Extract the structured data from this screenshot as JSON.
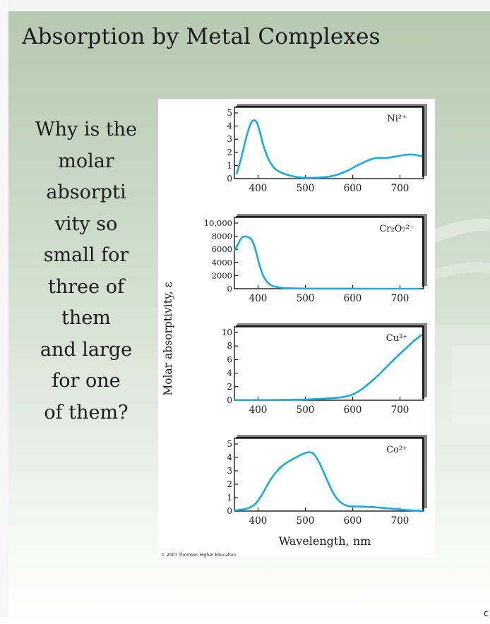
{
  "slide": {
    "title": "Absorption by Metal Complexes",
    "question_lines": [
      "Why is the",
      "molar",
      "absorpti",
      "vity so",
      "small for",
      "three of",
      "them",
      "and large",
      "for one",
      "of them?"
    ],
    "corner_glyph": "c"
  },
  "figure": {
    "ylabel": "Molar absorptivity, ε",
    "xlabel": "Wavelength, nm",
    "credit": "© 2007 Thomson Higher Education",
    "curve_color": "#1aaae8"
  },
  "chart_data": [
    {
      "type": "line",
      "series_label": "Ni²⁺",
      "x_ticks": [
        "400",
        "500",
        "600",
        "700"
      ],
      "y_ticks": [
        "0",
        "1",
        "2",
        "3",
        "4",
        "5"
      ],
      "xlim": [
        350,
        750
      ],
      "ylim": [
        0,
        5
      ],
      "x": [
        355,
        365,
        375,
        385,
        392,
        398,
        405,
        415,
        430,
        445,
        460,
        480,
        500,
        520,
        540,
        560,
        580,
        600,
        620,
        640,
        655,
        665,
        680,
        700,
        720,
        735,
        745
      ],
      "y": [
        0.4,
        1.6,
        3.2,
        4.3,
        4.5,
        4.3,
        3.4,
        2.0,
        0.9,
        0.5,
        0.3,
        0.12,
        0.05,
        0.05,
        0.1,
        0.2,
        0.45,
        0.8,
        1.2,
        1.5,
        1.6,
        1.55,
        1.6,
        1.75,
        1.85,
        1.8,
        1.7
      ]
    },
    {
      "type": "line",
      "series_label": "Cr₂O₇²⁻",
      "x_ticks": [
        "400",
        "500",
        "600",
        "700"
      ],
      "y_ticks": [
        "0",
        "2000",
        "4000",
        "6000",
        "8000",
        "10,000"
      ],
      "xlim": [
        350,
        750
      ],
      "ylim": [
        0,
        10000
      ],
      "x": [
        350,
        358,
        365,
        372,
        380,
        388,
        395,
        402,
        410,
        420,
        430,
        445,
        460,
        480,
        500,
        550,
        600,
        650,
        700,
        740
      ],
      "y": [
        5800,
        6800,
        7800,
        8000,
        7900,
        7400,
        5900,
        3800,
        2000,
        900,
        400,
        180,
        80,
        40,
        20,
        10,
        5,
        5,
        5,
        5
      ]
    },
    {
      "type": "line",
      "series_label": "Cu²⁺",
      "x_ticks": [
        "400",
        "500",
        "600",
        "700"
      ],
      "y_ticks": [
        "0",
        "2",
        "4",
        "6",
        "8",
        "10"
      ],
      "xlim": [
        350,
        750
      ],
      "ylim": [
        0,
        10
      ],
      "x": [
        350,
        400,
        450,
        500,
        550,
        580,
        600,
        615,
        630,
        650,
        670,
        690,
        710,
        730,
        745
      ],
      "y": [
        0.02,
        0.02,
        0.05,
        0.1,
        0.25,
        0.45,
        0.8,
        1.4,
        2.2,
        3.4,
        4.8,
        6.2,
        7.5,
        8.8,
        9.6
      ]
    },
    {
      "type": "line",
      "series_label": "Co²⁺",
      "x_ticks": [
        "400",
        "500",
        "600",
        "700"
      ],
      "y_ticks": [
        "0",
        "1",
        "2",
        "3",
        "4",
        "5"
      ],
      "xlim": [
        350,
        750
      ],
      "ylim": [
        0,
        5
      ],
      "x": [
        350,
        365,
        380,
        395,
        410,
        425,
        440,
        455,
        470,
        485,
        500,
        510,
        518,
        530,
        545,
        560,
        575,
        590,
        610,
        640,
        660,
        690,
        720,
        745
      ],
      "y": [
        0.05,
        0.1,
        0.2,
        0.5,
        1.3,
        2.3,
        3.0,
        3.5,
        3.8,
        4.1,
        4.35,
        4.4,
        4.3,
        3.6,
        2.4,
        1.2,
        0.6,
        0.35,
        0.35,
        0.3,
        0.25,
        0.15,
        0.05,
        0.02
      ]
    }
  ]
}
